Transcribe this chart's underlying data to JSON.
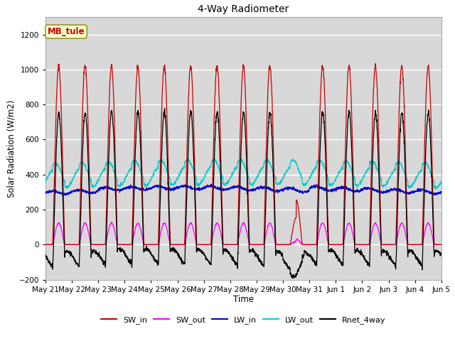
{
  "title": "4-Way Radiometer",
  "xlabel": "Time",
  "ylabel": "Solar Radiation (W/m2)",
  "ylim": [
    -200,
    1300
  ],
  "yticks": [
    -200,
    0,
    200,
    400,
    600,
    800,
    1000,
    1200
  ],
  "annotation_text": "MB_tule",
  "annotation_color": "#cc0000",
  "annotation_bg": "#ffffcc",
  "annotation_border": "#888800",
  "line_colors": {
    "SW_in": "#cc0000",
    "SW_out": "#ff00ff",
    "LW_in": "#0000cc",
    "LW_out": "#00cccc",
    "Rnet_4way": "#000000"
  },
  "legend_labels": [
    "SW_in",
    "SW_out",
    "LW_in",
    "LW_out",
    "Rnet_4way"
  ],
  "x_tick_labels": [
    "May 21",
    "May 22",
    "May 23",
    "May 24",
    "May 25",
    "May 26",
    "May 27",
    "May 28",
    "May 29",
    "May 30",
    "May 31",
    "Jun 1",
    "Jun 2",
    "Jun 3",
    "Jun 4",
    "Jun 5"
  ],
  "num_days": 15,
  "plot_bg": "#d8d8d8",
  "grid_color": "#ffffff",
  "fig_bg": "#ffffff"
}
